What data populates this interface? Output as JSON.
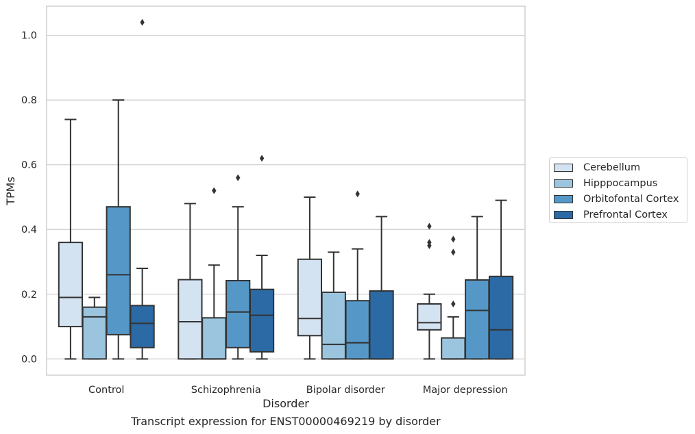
{
  "caption": "Transcript expression for ENST00000469219 by disorder",
  "chart_data": {
    "type": "boxplot",
    "xlabel": "Disorder",
    "ylabel": "TPMs",
    "ylim": [
      -0.05,
      1.09
    ],
    "yticks": [
      "0.0",
      "0.2",
      "0.4",
      "0.6",
      "0.8",
      "1.0"
    ],
    "grid": true,
    "legend_position": "right",
    "categories": [
      "Control",
      "Schizophrenia",
      "Bipolar disorder",
      "Major depression"
    ],
    "series": [
      {
        "name": "Cerebellum",
        "color": "#d4e3f2",
        "boxes": [
          {
            "whislo": 0.0,
            "q1": 0.1,
            "med": 0.19,
            "q3": 0.36,
            "whishi": 0.74,
            "fliers": []
          },
          {
            "whislo": 0.0,
            "q1": 0.0,
            "med": 0.115,
            "q3": 0.245,
            "whishi": 0.48,
            "fliers": []
          },
          {
            "whislo": 0.0,
            "q1": 0.072,
            "med": 0.125,
            "q3": 0.308,
            "whishi": 0.5,
            "fliers": []
          },
          {
            "whislo": 0.0,
            "q1": 0.09,
            "med": 0.112,
            "q3": 0.17,
            "whishi": 0.2,
            "fliers": [
              0.35,
              0.36,
              0.41
            ]
          }
        ]
      },
      {
        "name": "Hipppocampus",
        "color": "#9bc5de",
        "boxes": [
          {
            "whislo": 0.0,
            "q1": 0.0,
            "med": 0.13,
            "q3": 0.16,
            "whishi": 0.19,
            "fliers": []
          },
          {
            "whislo": 0.0,
            "q1": 0.0,
            "med": 0.0,
            "q3": 0.127,
            "whishi": 0.29,
            "fliers": [
              0.52
            ]
          },
          {
            "whislo": 0.0,
            "q1": 0.0,
            "med": 0.045,
            "q3": 0.206,
            "whishi": 0.33,
            "fliers": []
          },
          {
            "whislo": 0.0,
            "q1": 0.0,
            "med": 0.0,
            "q3": 0.065,
            "whishi": 0.13,
            "fliers": [
              0.17,
              0.33,
              0.37
            ]
          }
        ]
      },
      {
        "name": "Orbitofontal Cortex",
        "color": "#5598c8",
        "boxes": [
          {
            "whislo": 0.0,
            "q1": 0.075,
            "med": 0.26,
            "q3": 0.47,
            "whishi": 0.8,
            "fliers": []
          },
          {
            "whislo": 0.0,
            "q1": 0.035,
            "med": 0.145,
            "q3": 0.242,
            "whishi": 0.47,
            "fliers": [
              0.56
            ]
          },
          {
            "whislo": 0.0,
            "q1": 0.0,
            "med": 0.05,
            "q3": 0.18,
            "whishi": 0.34,
            "fliers": [
              0.51
            ]
          },
          {
            "whislo": 0.0,
            "q1": 0.0,
            "med": 0.15,
            "q3": 0.244,
            "whishi": 0.44,
            "fliers": []
          }
        ]
      },
      {
        "name": "Prefrontal Cortex",
        "color": "#2c6aa5",
        "boxes": [
          {
            "whislo": 0.0,
            "q1": 0.035,
            "med": 0.11,
            "q3": 0.165,
            "whishi": 0.28,
            "fliers": [
              1.04
            ]
          },
          {
            "whislo": 0.0,
            "q1": 0.022,
            "med": 0.135,
            "q3": 0.215,
            "whishi": 0.32,
            "fliers": [
              0.62
            ]
          },
          {
            "whislo": 0.0,
            "q1": 0.0,
            "med": 0.0,
            "q3": 0.21,
            "whishi": 0.44,
            "fliers": []
          },
          {
            "whislo": 0.0,
            "q1": 0.0,
            "med": 0.09,
            "q3": 0.255,
            "whishi": 0.49,
            "fliers": []
          }
        ]
      }
    ]
  }
}
